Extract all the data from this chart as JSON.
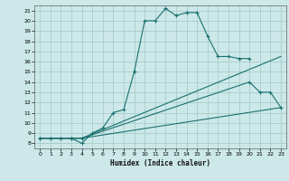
{
  "bg_color": "#cce8e8",
  "grid_color": "#aacccc",
  "line_color": "#1a7070",
  "xlabel": "Humidex (Indice chaleur)",
  "xlim": [
    -0.5,
    23.5
  ],
  "ylim": [
    7.5,
    21.5
  ],
  "xticks": [
    0,
    1,
    2,
    3,
    4,
    5,
    6,
    7,
    8,
    9,
    10,
    11,
    12,
    13,
    14,
    15,
    16,
    17,
    18,
    19,
    20,
    21,
    22,
    23
  ],
  "yticks": [
    8,
    9,
    10,
    11,
    12,
    13,
    14,
    15,
    16,
    17,
    18,
    19,
    20,
    21
  ],
  "curves": [
    {
      "x": [
        0,
        1,
        2,
        3,
        4,
        5,
        6,
        7,
        8,
        9,
        10,
        11,
        12,
        13,
        14,
        15,
        16,
        17,
        18,
        19,
        20
      ],
      "y": [
        8.5,
        8.5,
        8.5,
        8.5,
        8.0,
        9.0,
        9.5,
        11.0,
        11.3,
        15.0,
        20.0,
        20.0,
        21.2,
        20.5,
        20.8,
        20.8,
        18.5,
        16.5,
        16.5,
        16.3,
        16.3
      ],
      "marker": true
    },
    {
      "x": [
        0,
        3,
        4,
        23
      ],
      "y": [
        8.5,
        8.5,
        8.5,
        11.5
      ],
      "marker": false
    },
    {
      "x": [
        0,
        3,
        4,
        23
      ],
      "y": [
        8.5,
        8.5,
        8.5,
        16.5
      ],
      "marker": false
    },
    {
      "x": [
        0,
        3,
        4,
        20,
        21,
        22,
        23
      ],
      "y": [
        8.5,
        8.5,
        8.5,
        14.0,
        13.0,
        13.0,
        11.5
      ],
      "marker": true
    }
  ]
}
